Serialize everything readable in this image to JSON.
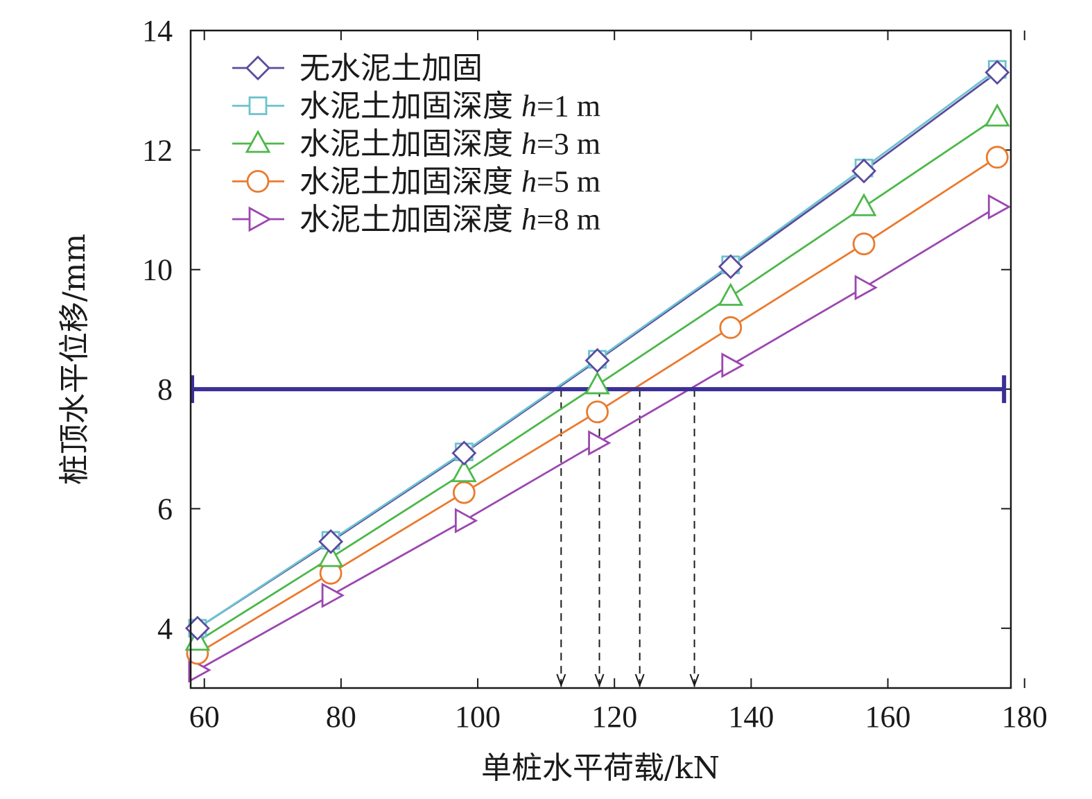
{
  "chart_data": {
    "type": "line",
    "xlabel": "单桩水平荷载/kN",
    "ylabel": "桩顶水平位移/mm",
    "xlim": [
      58,
      178
    ],
    "ylim": [
      3,
      14
    ],
    "xticks": [
      60,
      80,
      100,
      120,
      140,
      160,
      180
    ],
    "yticks": [
      4,
      6,
      8,
      10,
      12,
      14
    ],
    "x": [
      59,
      78.5,
      98,
      117.5,
      137,
      156.5,
      176
    ],
    "series": [
      {
        "name": "无水泥土加固",
        "label_main": "无水泥土加固",
        "label_var": "",
        "label_val": "",
        "marker": "diamond",
        "color": "#5b4a9e",
        "values": [
          4.0,
          5.45,
          6.93,
          8.48,
          10.05,
          11.65,
          13.3
        ]
      },
      {
        "name": "水泥土加固深度 h=1 m",
        "label_main": "水泥土加固深度",
        "label_var": "h",
        "label_val": "=1 m",
        "marker": "square",
        "color": "#6cc3cf",
        "values": [
          4.0,
          5.47,
          6.95,
          8.5,
          10.08,
          11.7,
          13.35
        ]
      },
      {
        "name": "水泥土加固深度 h=3 m",
        "label_main": "水泥土加固深度",
        "label_var": "h",
        "label_val": "=3 m",
        "marker": "triangle",
        "color": "#4cb849",
        "values": [
          3.78,
          5.18,
          6.6,
          8.07,
          9.55,
          11.05,
          12.55
        ]
      },
      {
        "name": "水泥土加固深度 h=5 m",
        "label_main": "水泥土加固深度",
        "label_var": "h",
        "label_val": "=5 m",
        "marker": "circle",
        "color": "#ea7a2e",
        "values": [
          3.58,
          4.92,
          6.27,
          7.62,
          9.03,
          10.43,
          11.88
        ]
      },
      {
        "name": "水泥土加固深度 h=8 m",
        "label_main": "水泥土加固深度",
        "label_var": "h",
        "label_val": "=8 m",
        "marker": "triangle-right",
        "color": "#9b47b0",
        "values": [
          3.3,
          4.55,
          5.8,
          7.1,
          8.4,
          9.7,
          11.05
        ]
      }
    ],
    "reference_line": {
      "y": 8,
      "x_range": [
        58,
        177
      ],
      "color": "#3a2f96"
    },
    "intersections_x": [
      112.2,
      117.8,
      123.7,
      131.7
    ],
    "legend_position": "top-left",
    "grid": false
  }
}
